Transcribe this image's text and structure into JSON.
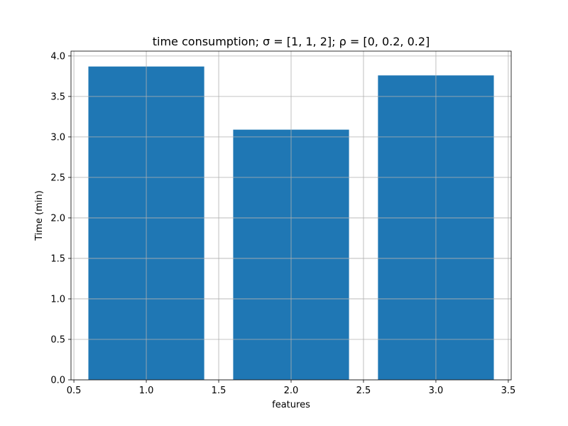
{
  "chart_data": {
    "type": "bar",
    "title": "time consumption;  σ = [1, 1, 2];  ρ = [0, 0.2, 0.2]",
    "xlabel": "features",
    "ylabel": "Time (min)",
    "x": [
      1.0,
      2.0,
      3.0
    ],
    "values": [
      3.87,
      3.09,
      3.76
    ],
    "bar_width": 0.8,
    "xlim": [
      0.48,
      3.52
    ],
    "ylim": [
      0,
      4.06
    ],
    "xticks": [
      0.5,
      1.0,
      1.5,
      2.0,
      2.5,
      3.0,
      3.5
    ],
    "xtick_labels": [
      "0.5",
      "1.0",
      "1.5",
      "2.0",
      "2.5",
      "3.0",
      "3.5"
    ],
    "yticks": [
      0.0,
      0.5,
      1.0,
      1.5,
      2.0,
      2.5,
      3.0,
      3.5,
      4.0
    ],
    "ytick_labels": [
      "0.0",
      "0.5",
      "1.0",
      "1.5",
      "2.0",
      "2.5",
      "3.0",
      "3.5",
      "4.0"
    ],
    "grid": true,
    "colors": {
      "bar": "#1f77b4",
      "grid": "#b0b0b0"
    }
  }
}
